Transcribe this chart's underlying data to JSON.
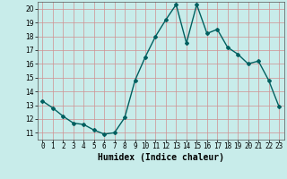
{
  "x": [
    0,
    1,
    2,
    3,
    4,
    5,
    6,
    7,
    8,
    9,
    10,
    11,
    12,
    13,
    14,
    15,
    16,
    17,
    18,
    19,
    20,
    21,
    22,
    23
  ],
  "y": [
    13.3,
    12.8,
    12.2,
    11.7,
    11.6,
    11.2,
    10.9,
    11.0,
    12.1,
    14.8,
    16.5,
    18.0,
    19.2,
    20.3,
    17.5,
    20.3,
    18.2,
    18.5,
    17.2,
    16.7,
    16.0,
    16.2,
    14.8,
    12.9
  ],
  "line_color": "#006060",
  "marker": "D",
  "markersize": 2.0,
  "linewidth": 1.0,
  "bg_color": "#c8ecea",
  "grid_color": "#d09090",
  "xlabel": "Humidex (Indice chaleur)",
  "xlim": [
    -0.5,
    23.5
  ],
  "ylim": [
    10.5,
    20.5
  ],
  "yticks": [
    11,
    12,
    13,
    14,
    15,
    16,
    17,
    18,
    19,
    20
  ],
  "xticks": [
    0,
    1,
    2,
    3,
    4,
    5,
    6,
    7,
    8,
    9,
    10,
    11,
    12,
    13,
    14,
    15,
    16,
    17,
    18,
    19,
    20,
    21,
    22,
    23
  ],
  "xlabel_fontsize": 7,
  "tick_fontsize": 5.5
}
